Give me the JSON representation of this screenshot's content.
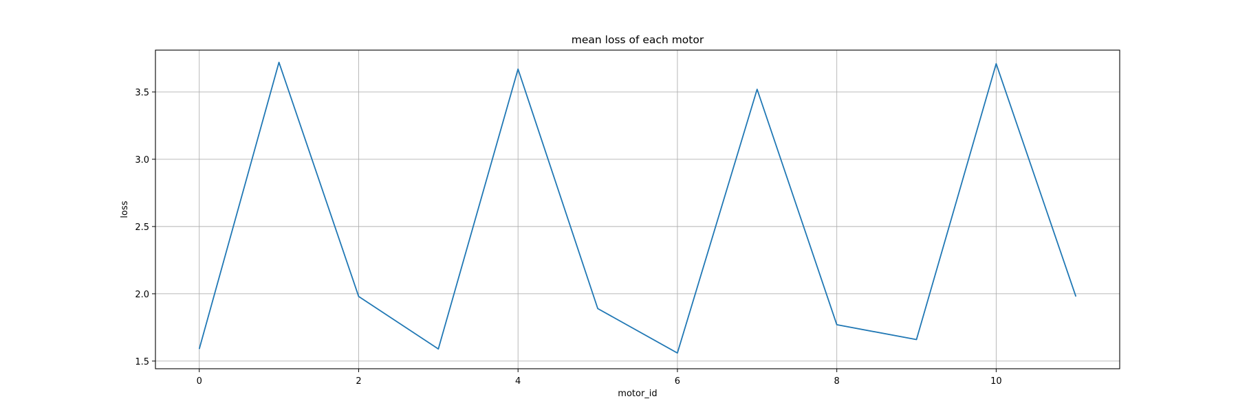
{
  "chart_data": {
    "type": "line",
    "title": "mean loss of each motor",
    "xlabel": "motor_id",
    "ylabel": "loss",
    "x": [
      0,
      1,
      2,
      3,
      4,
      5,
      6,
      7,
      8,
      9,
      10,
      11
    ],
    "series": [
      {
        "values": [
          1.59,
          3.72,
          1.98,
          1.59,
          3.67,
          1.89,
          1.56,
          3.52,
          1.77,
          1.66,
          3.71,
          1.98
        ],
        "color": "#1f77b4"
      }
    ],
    "xlim": [
      -0.55,
      11.55
    ],
    "ylim": [
      1.443,
      3.811
    ],
    "xticks": [
      0,
      2,
      4,
      6,
      8,
      10
    ],
    "yticks": [
      1.5,
      2.0,
      2.5,
      3.0,
      3.5
    ],
    "xtick_labels": [
      "0",
      "2",
      "4",
      "6",
      "8",
      "10"
    ],
    "ytick_labels": [
      "1.5",
      "2.0",
      "2.5",
      "3.0",
      "3.5"
    ],
    "grid": true,
    "legend": "none"
  }
}
